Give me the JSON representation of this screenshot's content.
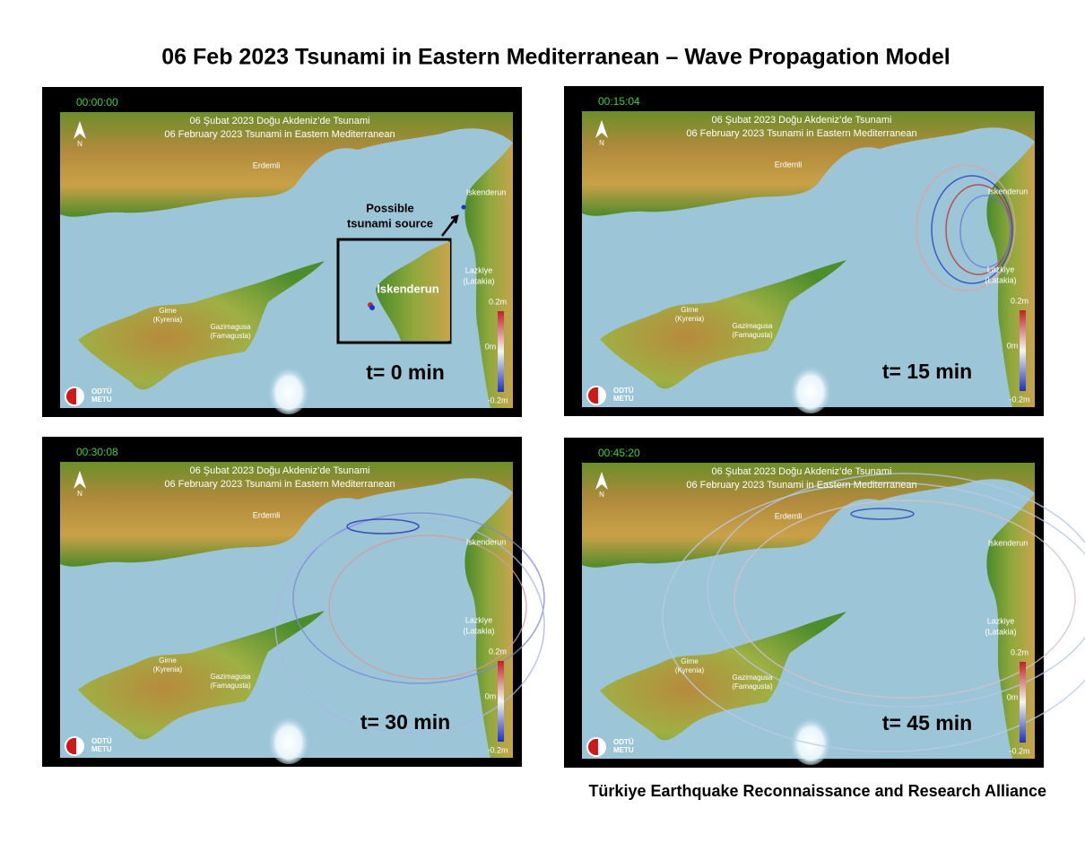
{
  "header": {
    "title": "06 Feb 2023 Tsunami in Eastern Mediterranean – Wave Propagation Model"
  },
  "footer": {
    "credit": "Türkiye Earthquake Reconnaissance and Research Alliance"
  },
  "panels": [
    {
      "timestamp": "00:00:00",
      "heading": [
        "06 Şubat 2023 Doğu Akdeniz’de Tsunami",
        "06 February 2023 Tsunami in Eastern Mediterranean"
      ],
      "places": [
        "Erdemli",
        "Iskenderun",
        "Lazkiye",
        "(Latakia)",
        "Girne",
        "(Kyrenia)",
        "Gazimagusa",
        "(Famagusta)"
      ],
      "colorbar": [
        "0.2m",
        "0m",
        "-0.2m"
      ],
      "north": "N",
      "logo": [
        "ODTÜ",
        "METU"
      ],
      "time_label": "t= 0 min",
      "source_note": [
        "Possible",
        "tsunami source"
      ],
      "inset_label": "Iskenderun"
    },
    {
      "timestamp": "00:15:04",
      "heading": [
        "06 Şubat 2023 Doğu Akdeniz’de Tsunami",
        "06 February 2023 Tsunami in Eastern Mediterranean"
      ],
      "places": [
        "Erdemli",
        "Iskenderun",
        "Lazkiye",
        "(Latakia)",
        "Girne",
        "(Kyrenia)",
        "Gazimagusa",
        "(Famagusta)"
      ],
      "colorbar": [
        "0.2m",
        "0m",
        "-0.2m"
      ],
      "north": "N",
      "logo": [
        "ODTÜ",
        "METU"
      ],
      "time_label": "t= 15 min"
    },
    {
      "timestamp": "00:30:08",
      "heading": [
        "06 Şubat 2023 Doğu Akdeniz’de Tsunami",
        "06 February 2023 Tsunami in Eastern Mediterranean"
      ],
      "places": [
        "Erdemli",
        "Iskenderun",
        "Lazkiye",
        "(Latakia)",
        "Girne",
        "(Kyrenia)",
        "Gazimagusa",
        "(Famagusta)"
      ],
      "colorbar": [
        "0.2m",
        "0m",
        "-0.2m"
      ],
      "north": "N",
      "logo": [
        "ODTÜ",
        "METU"
      ],
      "time_label": "t= 30 min"
    },
    {
      "timestamp": "00:45:20",
      "heading": [
        "06 Şubat 2023 Doğu Akdeniz’de Tsunami",
        "06 February 2023 Tsunami in Eastern Mediterranean"
      ],
      "places": [
        "Erdemli",
        "Iskenderun",
        "Lazkiye",
        "(Latakia)",
        "Girne",
        "(Kyrenia)",
        "Gazimagusa",
        "(Famagusta)"
      ],
      "colorbar": [
        "0.2m",
        "0m",
        "-0.2m"
      ],
      "north": "N",
      "logo": [
        "ODTÜ",
        "METU"
      ],
      "time_label": "t= 45 min"
    }
  ]
}
